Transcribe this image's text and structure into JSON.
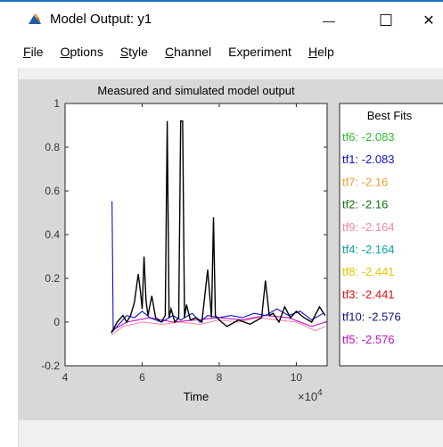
{
  "window": {
    "title": "Model Output: y1",
    "controls": {
      "minimize": "—",
      "maximize": "☐",
      "close": "✕"
    }
  },
  "menu": [
    "File",
    "Options",
    "Style",
    "Channel",
    "Experiment",
    "Help"
  ],
  "menu_mnemonic": [
    "F",
    "O",
    "S",
    "C",
    "E",
    "H"
  ],
  "chart_data": {
    "type": "line",
    "title": "Measured and simulated model output",
    "xlabel": "Time",
    "x_exponent_label": "×10",
    "x_exponent": "4",
    "xlim": [
      4,
      10.8
    ],
    "ylim": [
      -0.2,
      1
    ],
    "xticks": [
      "4",
      "6",
      "8",
      "10"
    ],
    "yticks": [
      "-0.2",
      "0",
      "0.2",
      "0.4",
      "0.6",
      "0.8",
      "1"
    ],
    "grid": false,
    "legend": {
      "title": "Best Fits",
      "placement": "right",
      "entries": [
        {
          "label": "tf6: -2.083",
          "color": "#33bb33"
        },
        {
          "label": "tf1: -2.083",
          "color": "#1010d0"
        },
        {
          "label": "tf7: -2.16",
          "color": "#f0a030"
        },
        {
          "label": "tf2: -2.16",
          "color": "#107010"
        },
        {
          "label": "tf9: -2.164",
          "color": "#f08aa8"
        },
        {
          "label": "tf4: -2.164",
          "color": "#10a0a0"
        },
        {
          "label": "tf8: -2.441",
          "color": "#e8c400"
        },
        {
          "label": "tf3: -2.441",
          "color": "#e01010"
        },
        {
          "label": "tf10: -2.576",
          "color": "#101080"
        },
        {
          "label": "tf5: -2.576",
          "color": "#c010c0"
        }
      ]
    },
    "series": [
      {
        "color": "#000000",
        "x": [
          5.2,
          5.35,
          5.5,
          5.6,
          5.7,
          5.8,
          5.9,
          5.95,
          6.0,
          6.05,
          6.1,
          6.15,
          6.25,
          6.35,
          6.5,
          6.6,
          6.65,
          6.7,
          6.75,
          6.85,
          6.95,
          7.0,
          7.05,
          7.1,
          7.15,
          7.25,
          7.4,
          7.55,
          7.7,
          7.8,
          7.85,
          7.9,
          8.0,
          8.2,
          8.5,
          8.8,
          9.1,
          9.2,
          9.3,
          9.4,
          9.55,
          9.7,
          9.85,
          10.0,
          10.2,
          10.4,
          10.6,
          10.75
        ],
        "values": [
          -0.05,
          0.0,
          0.03,
          0.0,
          0.03,
          0.09,
          0.22,
          0.15,
          0.06,
          0.3,
          0.1,
          0.03,
          0.12,
          0.02,
          0.0,
          0.03,
          0.92,
          0.02,
          0.06,
          0.0,
          0.02,
          0.92,
          0.92,
          0.02,
          0.08,
          0.01,
          0.02,
          0.0,
          0.24,
          0.02,
          0.48,
          0.03,
          0.01,
          -0.02,
          0.01,
          -0.01,
          0.02,
          0.19,
          0.03,
          0.04,
          0.0,
          0.07,
          0.02,
          0.05,
          0.02,
          0.0,
          0.07,
          0.03
        ]
      },
      {
        "color": "#1010d0",
        "x": [
          5.2,
          5.22,
          5.25,
          5.4,
          5.6,
          5.8,
          6.0,
          6.2,
          6.5,
          6.8,
          7.0,
          7.3,
          7.5,
          7.7,
          8.0,
          8.3,
          8.6,
          8.9,
          9.2,
          9.5,
          9.8,
          10.1,
          10.4,
          10.7
        ],
        "values": [
          0.55,
          0.55,
          -0.04,
          -0.01,
          0.03,
          0.02,
          0.05,
          0.02,
          0.0,
          0.03,
          0.01,
          0.04,
          0.0,
          0.03,
          0.02,
          0.03,
          0.02,
          0.04,
          0.03,
          0.06,
          0.03,
          0.05,
          0.01,
          0.04
        ]
      },
      {
        "color": "#f08aa8",
        "x": [
          5.2,
          5.5,
          6.0,
          6.5,
          7.0,
          7.5,
          8.0,
          8.5,
          9.0,
          9.5,
          10.0,
          10.5,
          10.75
        ],
        "values": [
          -0.06,
          -0.02,
          0.0,
          -0.01,
          0.0,
          -0.01,
          0.01,
          0.0,
          0.02,
          0.01,
          0.0,
          -0.04,
          -0.02
        ]
      },
      {
        "color": "#c010c0",
        "x": [
          5.2,
          5.6,
          6.2,
          6.8,
          7.4,
          8.0,
          8.6,
          9.2,
          9.8,
          10.4,
          10.75
        ],
        "values": [
          -0.04,
          0.0,
          0.02,
          0.0,
          0.01,
          0.02,
          0.01,
          0.03,
          0.02,
          -0.02,
          0.0
        ]
      }
    ]
  }
}
